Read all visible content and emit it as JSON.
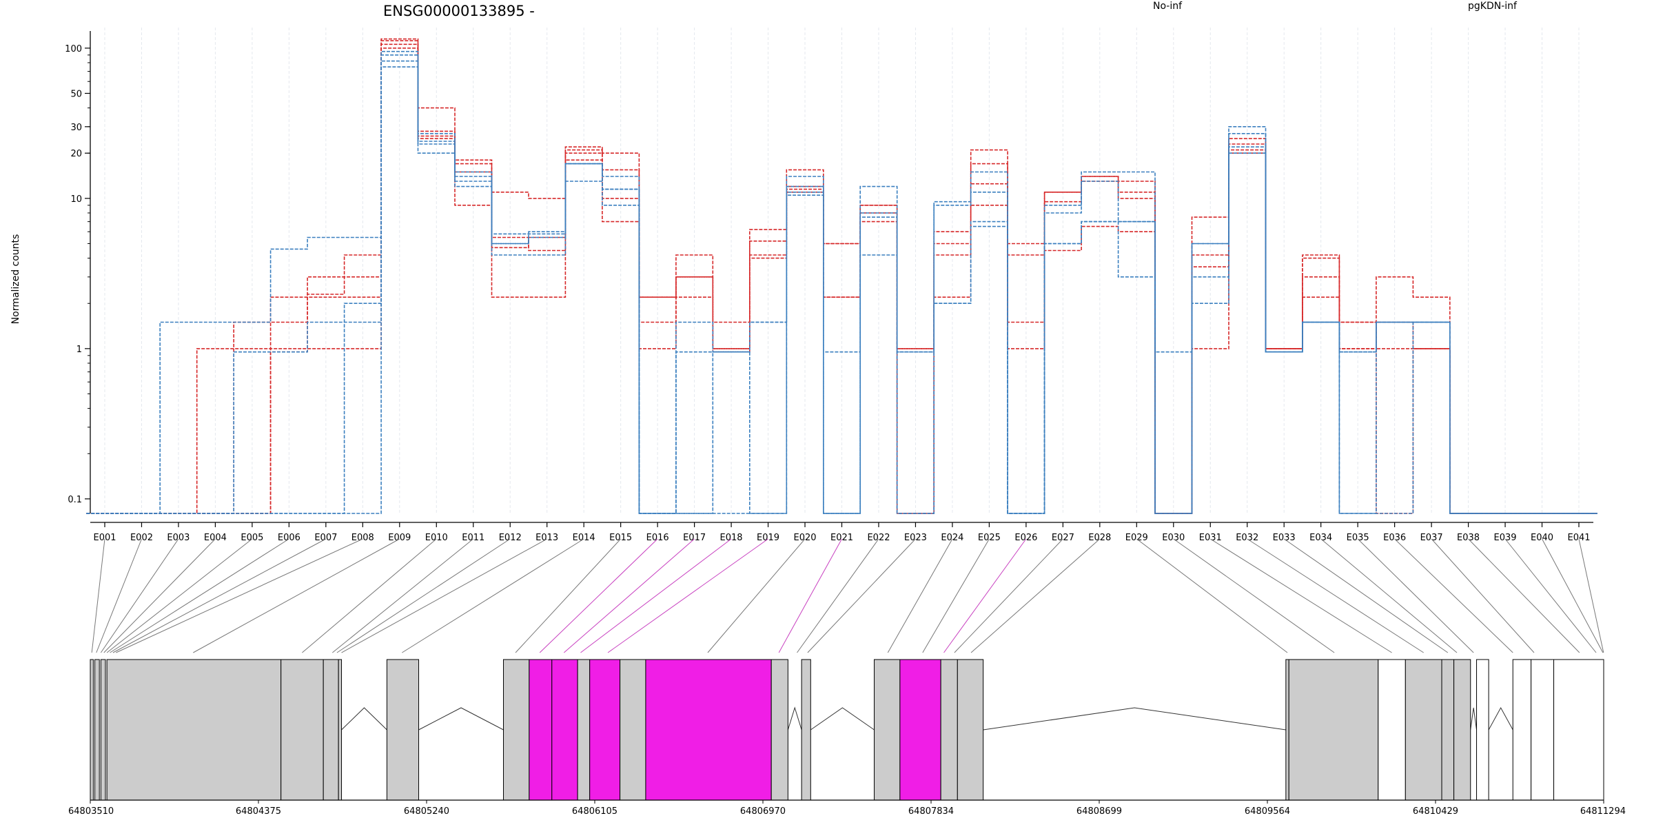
{
  "chart_data": {
    "type": "line",
    "title": "ENSG00000133895 -",
    "ylabel": "Normalized counts",
    "xlabel": "",
    "y_scale": "log",
    "ylim": [
      0.08,
      130
    ],
    "grid": "vertical dashed lines at each exon",
    "legend": [
      {
        "name": "No-inf",
        "color": "#d62728"
      },
      {
        "name": "pgKDN-inf",
        "color": "#3a7fbf"
      }
    ],
    "categories": [
      "E001",
      "E002",
      "E003",
      "E004",
      "E005",
      "E006",
      "E007",
      "E008",
      "E009",
      "E010",
      "E011",
      "E012",
      "E013",
      "E014",
      "E015",
      "E016",
      "E017",
      "E018",
      "E019",
      "E020",
      "E021",
      "E022",
      "E023",
      "E024",
      "E025",
      "E026",
      "E027",
      "E028",
      "E029",
      "E030",
      "E031",
      "E032",
      "E033",
      "E034",
      "E035",
      "E036",
      "E037",
      "E038",
      "E039",
      "E040",
      "E041"
    ],
    "yticks": [
      {
        "value": 100,
        "label": "100"
      },
      {
        "value": 50,
        "label": "50"
      },
      {
        "value": 30,
        "label": "30"
      },
      {
        "value": 20,
        "label": "20"
      },
      {
        "value": 10,
        "label": "10"
      },
      {
        "value": 1,
        "label": "1"
      },
      {
        "value": 0.1,
        "label": "0.1"
      }
    ],
    "series": [
      {
        "group": "No-inf",
        "color": "#d62728",
        "values": [
          0.08,
          0.08,
          0.08,
          1,
          1.5,
          1.5,
          2.3,
          3,
          115,
          40,
          18,
          11,
          10,
          22,
          20,
          2.2,
          4.2,
          1.5,
          5.2,
          15.5,
          5,
          9,
          1,
          4.2,
          12.5,
          1.5,
          11,
          14,
          13,
          0.08,
          3.5,
          25,
          1,
          3,
          1.5,
          3,
          2.2,
          0.08,
          0.08,
          0.08,
          0.08
        ]
      },
      {
        "group": "No-inf",
        "color": "#d62728",
        "values": [
          0.08,
          0.08,
          0.08,
          0.08,
          1,
          2.2,
          3,
          4.2,
          112,
          28,
          17,
          5.5,
          4.5,
          21,
          15.5,
          1.5,
          2.2,
          1,
          6.2,
          12,
          2.2,
          8,
          1,
          5,
          17,
          4.2,
          9.5,
          13,
          11,
          0.08,
          4.2,
          21,
          1,
          4.2,
          1,
          1.5,
          1,
          0.08,
          0.08,
          0.08,
          0.08
        ]
      },
      {
        "group": "No-inf",
        "color": "#d62728",
        "values": [
          0.08,
          0.08,
          0.08,
          0.08,
          0.08,
          1,
          1,
          1,
          100,
          26,
          9,
          2.2,
          2.2,
          18,
          7,
          1,
          3,
          1,
          4,
          11,
          2.2,
          7,
          0.08,
          2.2,
          9,
          1,
          4.5,
          6.5,
          6,
          0.08,
          1,
          20,
          1,
          2.2,
          1,
          0.08,
          1,
          0.08,
          0.08,
          0.08,
          0.08
        ]
      },
      {
        "group": "No-inf",
        "color": "#d62728",
        "values": [
          0.08,
          0.08,
          0.08,
          0.08,
          0.08,
          0.95,
          2.2,
          2.2,
          106,
          25,
          15,
          4.7,
          5.5,
          20,
          10,
          2.2,
          3,
          0.95,
          4.2,
          11.5,
          5,
          9,
          0.08,
          6,
          21,
          5,
          11,
          14,
          10,
          0.08,
          7.5,
          23,
          1,
          4,
          1.5,
          1,
          1,
          0.08,
          0.08,
          0.08,
          0.08
        ]
      },
      {
        "group": "pgKDN-inf",
        "color": "#3a7fbf",
        "values": [
          0.08,
          0.08,
          1.5,
          1.5,
          1.5,
          4.6,
          5.5,
          5.5,
          95,
          27,
          14,
          5.8,
          5.8,
          17,
          11.5,
          0.08,
          0.95,
          0.95,
          1.5,
          14,
          0.95,
          12,
          0.95,
          9,
          15,
          0.08,
          9,
          15,
          15,
          0.08,
          5,
          30,
          0.95,
          1.5,
          0.95,
          1.5,
          1.5,
          0.08,
          0.08,
          0.08,
          0.08
        ]
      },
      {
        "group": "pgKDN-inf",
        "color": "#3a7fbf",
        "values": [
          0.08,
          0.08,
          0.08,
          0.08,
          0.95,
          0.95,
          1.5,
          1.5,
          82,
          23,
          13,
          5,
          5.5,
          17,
          11.5,
          0.08,
          1.5,
          0.95,
          0.08,
          11,
          0.08,
          8,
          0.95,
          2,
          7,
          0.08,
          5,
          7,
          7,
          0.95,
          5,
          27,
          0.95,
          1.5,
          0.95,
          1.5,
          1.5,
          0.08,
          0.08,
          0.08,
          0.08
        ]
      },
      {
        "group": "pgKDN-inf",
        "color": "#3a7fbf",
        "values": [
          0.08,
          0.08,
          0.08,
          0.08,
          0.08,
          0.08,
          0.08,
          2,
          90,
          20,
          12,
          4.2,
          4.2,
          13,
          9,
          0.08,
          0.08,
          0.95,
          1.5,
          10.5,
          0.08,
          4.2,
          0.08,
          2,
          6.5,
          0.08,
          5,
          7,
          3,
          0.08,
          2,
          22,
          0.95,
          1.5,
          0.08,
          0.08,
          1.5,
          0.08,
          0.08,
          0.08,
          0.08
        ]
      },
      {
        "group": "pgKDN-inf",
        "color": "#3a7fbf",
        "values": [
          0.08,
          0.08,
          0.08,
          0.08,
          0.08,
          0.08,
          0.08,
          0.08,
          75,
          24,
          15,
          5,
          6,
          17,
          14,
          0.08,
          0.08,
          0.08,
          0.08,
          12,
          0.08,
          7.5,
          0.08,
          9.5,
          11,
          0.08,
          8,
          13,
          7,
          0.08,
          3,
          20,
          0.95,
          1.5,
          0.08,
          1.5,
          1.5,
          0.08,
          0.08,
          0.08,
          0.08
        ]
      }
    ]
  },
  "gene_model": {
    "coordinate_labels": [
      "64803510",
      "64804375",
      "64805240",
      "64806105",
      "64806970",
      "64807834",
      "64808699",
      "64809564",
      "64810429",
      "64811294"
    ],
    "exon_colors": {
      "constitutive": "#cccccc",
      "differential": "#f01ee6",
      "unused": "#ffffff"
    },
    "segments": [
      {
        "start": 0.0,
        "end": 0.002,
        "fill": "constitutive"
      },
      {
        "start": 0.003,
        "end": 0.006,
        "fill": "constitutive"
      },
      {
        "start": 0.007,
        "end": 0.01,
        "fill": "constitutive"
      },
      {
        "start": 0.011,
        "end": 0.126,
        "fill": "constitutive"
      },
      {
        "start": 0.126,
        "end": 0.154,
        "fill": "constitutive"
      },
      {
        "start": 0.154,
        "end": 0.164,
        "fill": "constitutive"
      },
      {
        "start": 0.164,
        "end": 0.166,
        "fill": "constitutive"
      },
      {
        "start": 0.196,
        "end": 0.217,
        "fill": "constitutive"
      },
      {
        "start": 0.273,
        "end": 0.29,
        "fill": "constitutive"
      },
      {
        "start": 0.29,
        "end": 0.305,
        "fill": "differential"
      },
      {
        "start": 0.305,
        "end": 0.322,
        "fill": "differential"
      },
      {
        "start": 0.322,
        "end": 0.33,
        "fill": "constitutive"
      },
      {
        "start": 0.33,
        "end": 0.35,
        "fill": "differential"
      },
      {
        "start": 0.35,
        "end": 0.367,
        "fill": "constitutive"
      },
      {
        "start": 0.367,
        "end": 0.45,
        "fill": "differential"
      },
      {
        "start": 0.45,
        "end": 0.461,
        "fill": "constitutive"
      },
      {
        "start": 0.47,
        "end": 0.476,
        "fill": "constitutive"
      },
      {
        "start": 0.518,
        "end": 0.535,
        "fill": "constitutive"
      },
      {
        "start": 0.535,
        "end": 0.562,
        "fill": "differential"
      },
      {
        "start": 0.562,
        "end": 0.573,
        "fill": "constitutive"
      },
      {
        "start": 0.573,
        "end": 0.59,
        "fill": "constitutive"
      },
      {
        "start": 0.79,
        "end": 0.792,
        "fill": "constitutive"
      },
      {
        "start": 0.792,
        "end": 0.851,
        "fill": "constitutive"
      },
      {
        "start": 0.851,
        "end": 0.869,
        "fill": "unused"
      },
      {
        "start": 0.869,
        "end": 0.893,
        "fill": "constitutive"
      },
      {
        "start": 0.893,
        "end": 0.901,
        "fill": "constitutive"
      },
      {
        "start": 0.901,
        "end": 0.912,
        "fill": "constitutive"
      },
      {
        "start": 0.916,
        "end": 0.924,
        "fill": "unused"
      },
      {
        "start": 0.94,
        "end": 0.952,
        "fill": "unused"
      },
      {
        "start": 0.952,
        "end": 0.967,
        "fill": "unused"
      },
      {
        "start": 0.967,
        "end": 1.0,
        "fill": "unused"
      }
    ],
    "connectors": [
      0.001,
      0.004,
      0.007,
      0.009,
      0.011,
      0.013,
      0.015,
      0.017,
      0.068,
      0.14,
      0.16,
      0.163,
      0.166,
      0.206,
      0.281,
      0.297,
      0.313,
      0.324,
      0.342,
      0.408,
      0.455,
      0.467,
      0.474,
      0.527,
      0.55,
      0.564,
      0.571,
      0.582,
      0.791,
      0.822,
      0.86,
      0.881,
      0.897,
      0.903,
      0.914,
      0.94,
      0.954,
      0.984,
      0.995,
      0.9995,
      0.9999
    ]
  }
}
